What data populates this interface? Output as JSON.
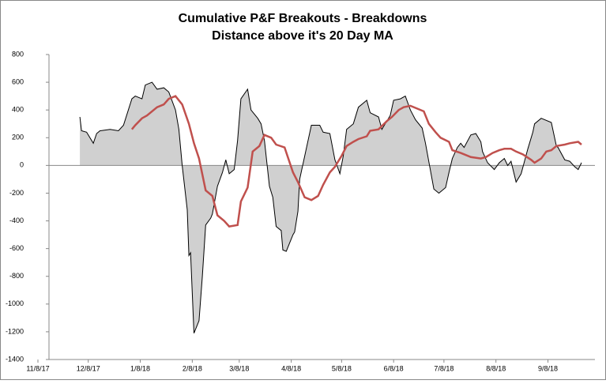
{
  "chart_data": {
    "type": "line",
    "title": "Cumulative P&F Breakouts - Breakdowns",
    "subtitle": "Distance above it's 20 Day MA",
    "xlim": [
      "11/8/17",
      "10/6/18"
    ],
    "xticks": [
      "11/8/17",
      "12/8/17",
      "1/8/18",
      "2/8/18",
      "3/8/18",
      "4/8/18",
      "5/8/18",
      "6/8/18",
      "7/8/18",
      "8/8/18",
      "9/8/18"
    ],
    "ylim": [
      -1400,
      800
    ],
    "yticks": [
      -1400,
      -1200,
      -1000,
      -800,
      -600,
      -400,
      -200,
      0,
      200,
      400,
      600,
      800
    ],
    "grid": false,
    "series": [
      {
        "color": "#000000",
        "fill": "#d0d0d0",
        "x": [
          "12/3/17",
          "12/4/17",
          "12/7/17",
          "12/8/17",
          "12/11/17",
          "12/13/17",
          "12/15/17",
          "12/21/17",
          "12/26/17",
          "12/29/17",
          "1/3/18",
          "1/5/18",
          "1/9/18",
          "1/11/18",
          "1/15/18",
          "1/18/18",
          "1/22/18",
          "1/25/18",
          "1/29/18",
          "1/31/18",
          "2/2/18",
          "2/5/18",
          "2/6/18",
          "2/7/18",
          "2/9/18",
          "2/12/18",
          "2/14/18",
          "2/16/18",
          "2/19/18",
          "2/20/18",
          "2/23/18",
          "2/26/18",
          "2/28/18",
          "3/2/18",
          "3/5/18",
          "3/7/18",
          "3/9/18",
          "3/13/18",
          "3/15/18",
          "3/19/18",
          "3/21/18",
          "3/23/18",
          "3/26/18",
          "3/28/18",
          "3/30/18",
          "4/2/18",
          "4/3/18",
          "4/5/18",
          "4/9/18",
          "4/10/18",
          "4/12/18",
          "4/13/18",
          "4/18/18",
          "4/20/18",
          "4/25/18",
          "4/27/18",
          "5/1/18",
          "5/4/18",
          "5/7/18",
          "5/9/18",
          "5/11/18",
          "5/15/18",
          "5/18/18",
          "5/23/18",
          "5/25/18",
          "5/30/18",
          "6/1/18",
          "6/6/18",
          "6/8/18",
          "6/12/18",
          "6/15/18",
          "6/18/18",
          "6/21/18",
          "6/25/18",
          "6/27/18",
          "7/2/18",
          "7/5/18",
          "7/9/18",
          "7/11/18",
          "7/13/18",
          "7/16/18",
          "7/18/18",
          "7/20/18",
          "7/24/18",
          "7/27/18",
          "7/30/18",
          "7/31/18",
          "8/3/18",
          "8/7/18",
          "8/10/18",
          "8/13/18",
          "8/15/18",
          "8/17/18",
          "8/20/18",
          "8/23/18",
          "8/27/18",
          "8/30/18",
          "8/31/18",
          "9/4/18",
          "9/10/18",
          "9/13/18",
          "9/14/18",
          "9/18/18",
          "9/21/18",
          "9/24/18",
          "9/26/18",
          "9/28/18"
        ],
        "values": [
          350,
          250,
          240,
          220,
          160,
          230,
          250,
          260,
          250,
          290,
          480,
          500,
          480,
          580,
          600,
          550,
          560,
          530,
          400,
          260,
          0,
          -320,
          -650,
          -630,
          -1210,
          -1120,
          -800,
          -430,
          -380,
          -350,
          -150,
          -50,
          40,
          -60,
          -30,
          180,
          480,
          550,
          400,
          340,
          300,
          180,
          -150,
          -230,
          -440,
          -470,
          -610,
          -620,
          -500,
          -480,
          -330,
          -100,
          180,
          290,
          290,
          240,
          230,
          40,
          -60,
          70,
          260,
          300,
          420,
          470,
          380,
          350,
          260,
          360,
          470,
          480,
          500,
          400,
          330,
          270,
          160,
          -170,
          -200,
          -160,
          -50,
          50,
          130,
          160,
          130,
          220,
          230,
          170,
          100,
          20,
          -30,
          20,
          50,
          0,
          30,
          -120,
          -60,
          120,
          240,
          300,
          340,
          310,
          140,
          130,
          40,
          30,
          -10,
          -30,
          20
        ]
      },
      {
        "color": "#c0504d",
        "x": [
          "1/3/18",
          "1/5/18",
          "1/9/18",
          "1/12/18",
          "1/18/18",
          "1/22/18",
          "1/25/18",
          "1/29/18",
          "2/2/18",
          "2/6/18",
          "2/9/18",
          "2/12/18",
          "2/16/18",
          "2/20/18",
          "2/23/18",
          "2/27/18",
          "3/2/18",
          "3/7/18",
          "3/9/18",
          "3/13/18",
          "3/16/18",
          "3/20/18",
          "3/23/18",
          "3/27/18",
          "3/30/18",
          "4/4/18",
          "4/9/18",
          "4/12/18",
          "4/16/18",
          "4/20/18",
          "4/24/18",
          "4/27/18",
          "5/1/18",
          "5/4/18",
          "5/8/18",
          "5/11/18",
          "5/15/18",
          "5/18/18",
          "5/23/18",
          "5/25/18",
          "5/30/18",
          "6/4/18",
          "6/7/18",
          "6/11/18",
          "6/14/18",
          "6/18/18",
          "6/22/18",
          "6/26/18",
          "6/29/18",
          "7/3/18",
          "7/6/18",
          "7/11/18",
          "7/13/18",
          "7/18/18",
          "7/20/18",
          "7/24/18",
          "7/30/18",
          "8/2/18",
          "8/6/18",
          "8/10/18",
          "8/13/18",
          "8/17/18",
          "8/20/18",
          "8/24/18",
          "8/29/18",
          "8/31/18",
          "9/4/18",
          "9/7/18",
          "9/10/18",
          "9/13/18",
          "9/18/18",
          "9/21/18",
          "9/26/18",
          "9/28/18"
        ],
        "values": [
          260,
          290,
          340,
          360,
          420,
          440,
          480,
          500,
          440,
          300,
          160,
          50,
          -180,
          -220,
          -360,
          -400,
          -440,
          -430,
          -260,
          -160,
          100,
          140,
          220,
          200,
          150,
          130,
          -50,
          -120,
          -230,
          -250,
          -220,
          -140,
          -50,
          -10,
          70,
          140,
          170,
          190,
          210,
          250,
          260,
          320,
          350,
          400,
          420,
          430,
          410,
          390,
          300,
          240,
          200,
          170,
          110,
          90,
          80,
          60,
          50,
          60,
          90,
          110,
          120,
          120,
          100,
          80,
          40,
          20,
          50,
          100,
          110,
          140,
          150,
          160,
          170,
          150
        ]
      }
    ]
  }
}
